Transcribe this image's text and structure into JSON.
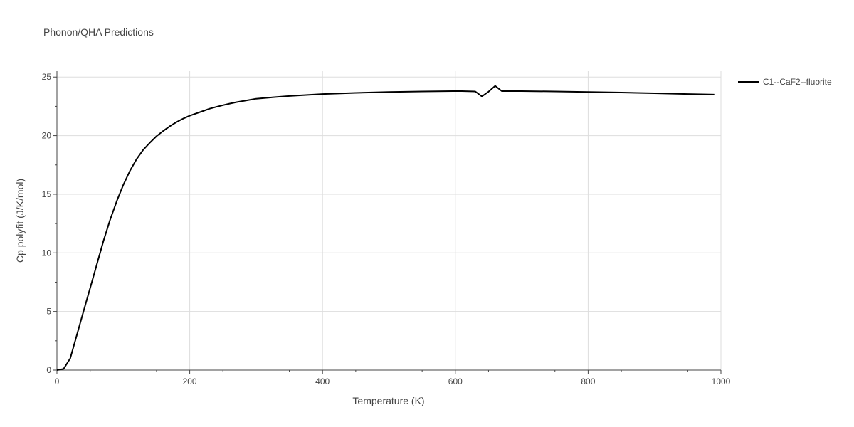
{
  "chart_data": {
    "type": "line",
    "title": "Phonon/QHA Predictions",
    "xlabel": "Temperature (K)",
    "ylabel": "Cp polyfit (J/K/mol)",
    "xlim": [
      0,
      1000
    ],
    "ylim": [
      0,
      25.5
    ],
    "xticks": [
      0,
      200,
      400,
      600,
      800,
      1000
    ],
    "yticks": [
      0,
      5,
      10,
      15,
      20,
      25
    ],
    "grid": true,
    "legend_position": "top-right",
    "series": [
      {
        "name": "C1--CaF2--fluorite",
        "color": "#000000",
        "x": [
          0,
          10,
          20,
          30,
          40,
          50,
          60,
          70,
          80,
          90,
          100,
          110,
          120,
          130,
          140,
          150,
          160,
          170,
          180,
          190,
          200,
          210,
          220,
          230,
          240,
          250,
          260,
          270,
          280,
          290,
          300,
          320,
          350,
          400,
          450,
          500,
          550,
          600,
          610,
          620,
          630,
          640,
          650,
          660,
          670,
          700,
          750,
          800,
          850,
          900,
          950,
          990
        ],
        "y": [
          0,
          0.1,
          1.0,
          3.0,
          5.0,
          7.0,
          9.0,
          11.0,
          12.8,
          14.4,
          15.8,
          17.0,
          18.0,
          18.8,
          19.4,
          19.95,
          20.4,
          20.8,
          21.15,
          21.45,
          21.7,
          21.9,
          22.1,
          22.3,
          22.45,
          22.6,
          22.73,
          22.85,
          22.95,
          23.05,
          23.15,
          23.25,
          23.38,
          23.55,
          23.65,
          23.72,
          23.77,
          23.8,
          23.8,
          23.78,
          23.77,
          23.35,
          23.75,
          24.25,
          23.8,
          23.8,
          23.77,
          23.72,
          23.68,
          23.62,
          23.55,
          23.5
        ]
      }
    ]
  }
}
